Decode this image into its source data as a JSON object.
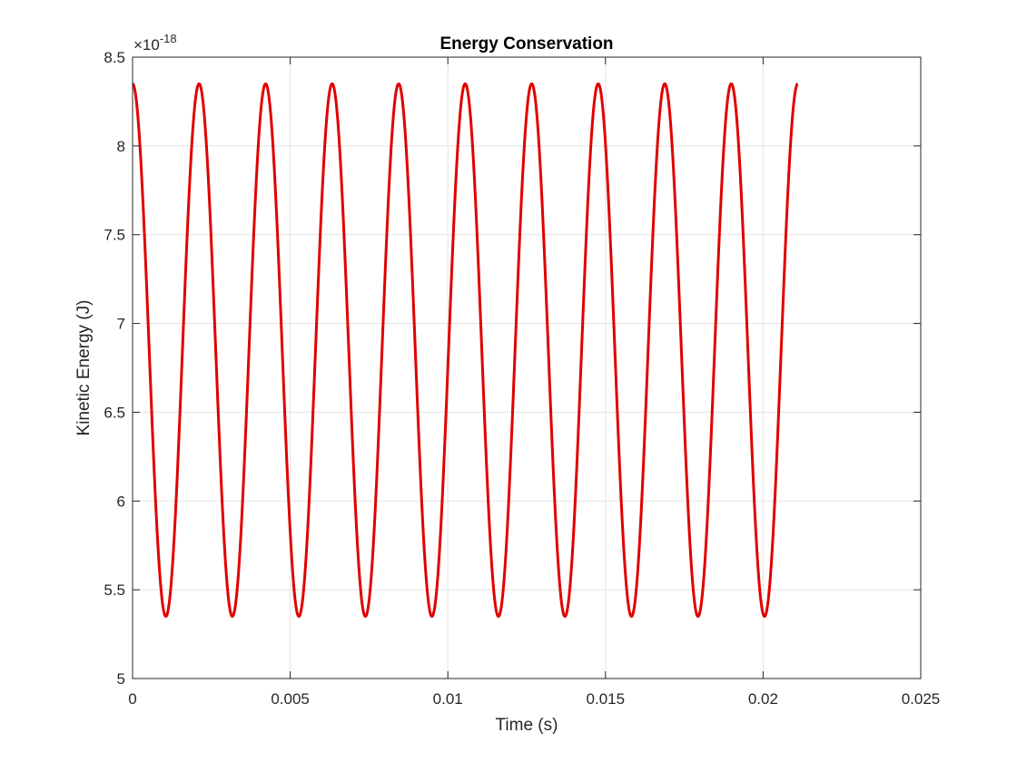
{
  "chart_data": {
    "type": "line",
    "title": "Energy Conservation",
    "xlabel": "Time (s)",
    "ylabel": "Kinetic Energy (J)",
    "y_exponent_label": "×10",
    "y_exponent_power": "-18",
    "xlim": [
      0,
      0.025
    ],
    "ylim": [
      5,
      8.5
    ],
    "x_ticks": [
      0,
      0.005,
      0.01,
      0.015,
      0.02,
      0.025
    ],
    "x_tick_labels": [
      "0",
      "0.005",
      "0.01",
      "0.015",
      "0.02",
      "0.025"
    ],
    "y_ticks": [
      5,
      5.5,
      6,
      6.5,
      7,
      7.5,
      8,
      8.5
    ],
    "y_tick_labels": [
      "5",
      "5.5",
      "6",
      "6.5",
      "7",
      "7.5",
      "8",
      "8.5"
    ],
    "grid": true,
    "series": [
      {
        "color": "#e00000",
        "x_start": 0,
        "x_end": 0.0211,
        "peaks_x": [
          0,
          0.00211,
          0.00422,
          0.00633,
          0.00844,
          0.01055,
          0.01266,
          0.01477,
          0.01688,
          0.01899,
          0.0211
        ],
        "troughs_x": [
          0.001055,
          0.003165,
          0.005275,
          0.007385,
          0.009495,
          0.011605,
          0.013715,
          0.015825,
          0.017935,
          0.020045
        ],
        "max_value": 8.35,
        "min_value": 5.35,
        "period": 0.00211
      }
    ]
  }
}
